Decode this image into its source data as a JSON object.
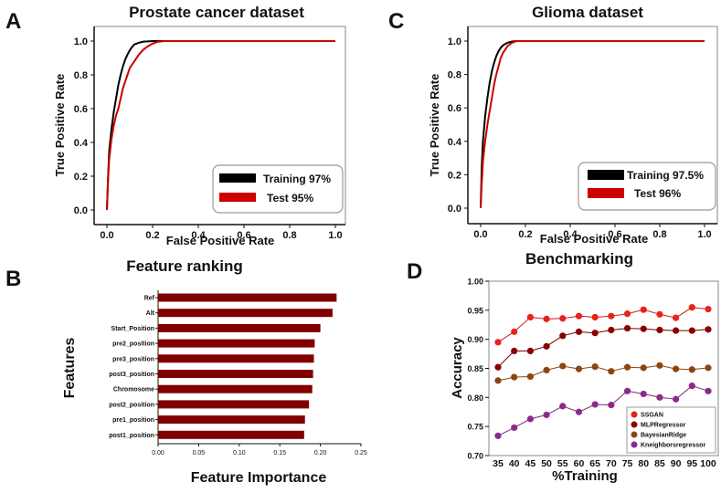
{
  "panels": {
    "a": "A",
    "b": "B",
    "c": "C",
    "d": "D"
  },
  "chart_data": [
    {
      "id": "A",
      "type": "line",
      "title": "Prostate cancer dataset",
      "xlabel": "False Positive Rate",
      "ylabel": "True Positive Rate",
      "xlim": [
        0,
        1
      ],
      "ylim": [
        0,
        1
      ],
      "xticks": [
        "0.0",
        "0.2",
        "0.4",
        "0.6",
        "0.8",
        "1.0"
      ],
      "yticks": [
        "0.0",
        "0.2",
        "0.4",
        "0.6",
        "0.8",
        "1.0"
      ],
      "series": [
        {
          "name": "Training 97%",
          "color": "#000000",
          "points": [
            [
              0,
              0
            ],
            [
              0.005,
              0.2
            ],
            [
              0.01,
              0.35
            ],
            [
              0.02,
              0.48
            ],
            [
              0.03,
              0.58
            ],
            [
              0.04,
              0.66
            ],
            [
              0.05,
              0.74
            ],
            [
              0.06,
              0.8
            ],
            [
              0.07,
              0.85
            ],
            [
              0.08,
              0.89
            ],
            [
              0.09,
              0.92
            ],
            [
              0.1,
              0.945
            ],
            [
              0.11,
              0.965
            ],
            [
              0.12,
              0.98
            ],
            [
              0.14,
              0.99
            ],
            [
              0.16,
              0.997
            ],
            [
              0.2,
              1
            ],
            [
              1,
              1
            ]
          ]
        },
        {
          "name": "Test 95%",
          "color": "#cc0000",
          "points": [
            [
              0,
              0
            ],
            [
              0.005,
              0.18
            ],
            [
              0.01,
              0.3
            ],
            [
              0.02,
              0.42
            ],
            [
              0.03,
              0.5
            ],
            [
              0.04,
              0.56
            ],
            [
              0.05,
              0.6
            ],
            [
              0.06,
              0.66
            ],
            [
              0.07,
              0.72
            ],
            [
              0.08,
              0.76
            ],
            [
              0.09,
              0.8
            ],
            [
              0.1,
              0.84
            ],
            [
              0.12,
              0.88
            ],
            [
              0.14,
              0.92
            ],
            [
              0.16,
              0.95
            ],
            [
              0.18,
              0.97
            ],
            [
              0.2,
              0.985
            ],
            [
              0.22,
              0.995
            ],
            [
              0.25,
              1
            ],
            [
              1,
              1
            ]
          ]
        }
      ]
    },
    {
      "id": "C",
      "type": "line",
      "title": "Glioma dataset",
      "xlabel": "False Positive Rate",
      "ylabel": "True Positive Rate",
      "xlim": [
        0,
        1
      ],
      "ylim": [
        0,
        1
      ],
      "xticks": [
        "0.0",
        "0.2",
        "0.4",
        "0.6",
        "0.8",
        "1.0"
      ],
      "yticks": [
        "0.0",
        "0.2",
        "0.4",
        "0.6",
        "0.8",
        "1.0"
      ],
      "series": [
        {
          "name": "Training 97.5%",
          "color": "#000000",
          "points": [
            [
              0,
              0
            ],
            [
              0.005,
              0.25
            ],
            [
              0.01,
              0.4
            ],
            [
              0.02,
              0.55
            ],
            [
              0.03,
              0.66
            ],
            [
              0.04,
              0.75
            ],
            [
              0.05,
              0.82
            ],
            [
              0.06,
              0.87
            ],
            [
              0.07,
              0.91
            ],
            [
              0.08,
              0.94
            ],
            [
              0.09,
              0.96
            ],
            [
              0.1,
              0.975
            ],
            [
              0.12,
              0.99
            ],
            [
              0.14,
              0.997
            ],
            [
              0.16,
              1
            ],
            [
              1,
              1
            ]
          ]
        },
        {
          "name": "Test 96%",
          "color": "#cc0000",
          "points": [
            [
              0,
              0
            ],
            [
              0.005,
              0.15
            ],
            [
              0.01,
              0.28
            ],
            [
              0.02,
              0.4
            ],
            [
              0.03,
              0.5
            ],
            [
              0.04,
              0.58
            ],
            [
              0.05,
              0.66
            ],
            [
              0.06,
              0.74
            ],
            [
              0.07,
              0.8
            ],
            [
              0.08,
              0.85
            ],
            [
              0.09,
              0.9
            ],
            [
              0.1,
              0.93
            ],
            [
              0.11,
              0.95
            ],
            [
              0.12,
              0.97
            ],
            [
              0.14,
              0.99
            ],
            [
              0.16,
              1
            ],
            [
              1,
              1
            ]
          ]
        }
      ]
    },
    {
      "id": "B",
      "type": "bar",
      "orientation": "horizontal",
      "title": "Feature ranking",
      "xlabel": "Feature Importance",
      "ylabel": "Features",
      "xlim": [
        0,
        0.25
      ],
      "xticks": [
        "0.00",
        "0.05",
        "0.10",
        "0.15",
        "0.20",
        "0.25"
      ],
      "bar_color": "#800000",
      "categories": [
        "Ref",
        "Alt",
        "Start_Position",
        "pre2_position",
        "pre3_position",
        "post3_position",
        "Chromosome",
        "post2_position",
        "pre1_position",
        "post1_position"
      ],
      "values": [
        0.22,
        0.215,
        0.2,
        0.193,
        0.192,
        0.191,
        0.19,
        0.186,
        0.181,
        0.18
      ]
    },
    {
      "id": "D",
      "type": "line",
      "title": "Benchmarking",
      "xlabel": "%Training",
      "ylabel": "Accuracy",
      "ylim": [
        0.7,
        1.0
      ],
      "yticks": [
        "0.70",
        "0.75",
        "0.80",
        "0.85",
        "0.90",
        "0.95",
        "1.00"
      ],
      "x": [
        "35",
        "40",
        "45",
        "50",
        "55",
        "60",
        "65",
        "70",
        "75",
        "80",
        "85",
        "90",
        "95",
        "100"
      ],
      "series": [
        {
          "name": "SSGAN",
          "color": "#e8221c",
          "line": "#cc1a1a",
          "values": [
            0.895,
            0.913,
            0.938,
            0.935,
            0.936,
            0.94,
            0.938,
            0.94,
            0.944,
            0.951,
            0.943,
            0.937,
            0.955,
            0.952
          ]
        },
        {
          "name": "MLPRegressor",
          "color": "#8b0000",
          "line": "#6b0000",
          "values": [
            0.852,
            0.88,
            0.88,
            0.888,
            0.906,
            0.913,
            0.911,
            0.916,
            0.919,
            0.918,
            0.916,
            0.915,
            0.915,
            0.917
          ]
        },
        {
          "name": "BayesianRidge",
          "color": "#8b4513",
          "line": "#8b4513",
          "values": [
            0.829,
            0.835,
            0.836,
            0.847,
            0.854,
            0.849,
            0.853,
            0.845,
            0.852,
            0.851,
            0.855,
            0.849,
            0.848,
            0.851
          ]
        },
        {
          "name": "Kneighborsregressor",
          "color": "#8b2a8b",
          "line": "#7a2a7a",
          "values": [
            0.734,
            0.748,
            0.763,
            0.77,
            0.785,
            0.775,
            0.788,
            0.787,
            0.811,
            0.806,
            0.8,
            0.797,
            0.82,
            0.811
          ]
        }
      ]
    }
  ]
}
